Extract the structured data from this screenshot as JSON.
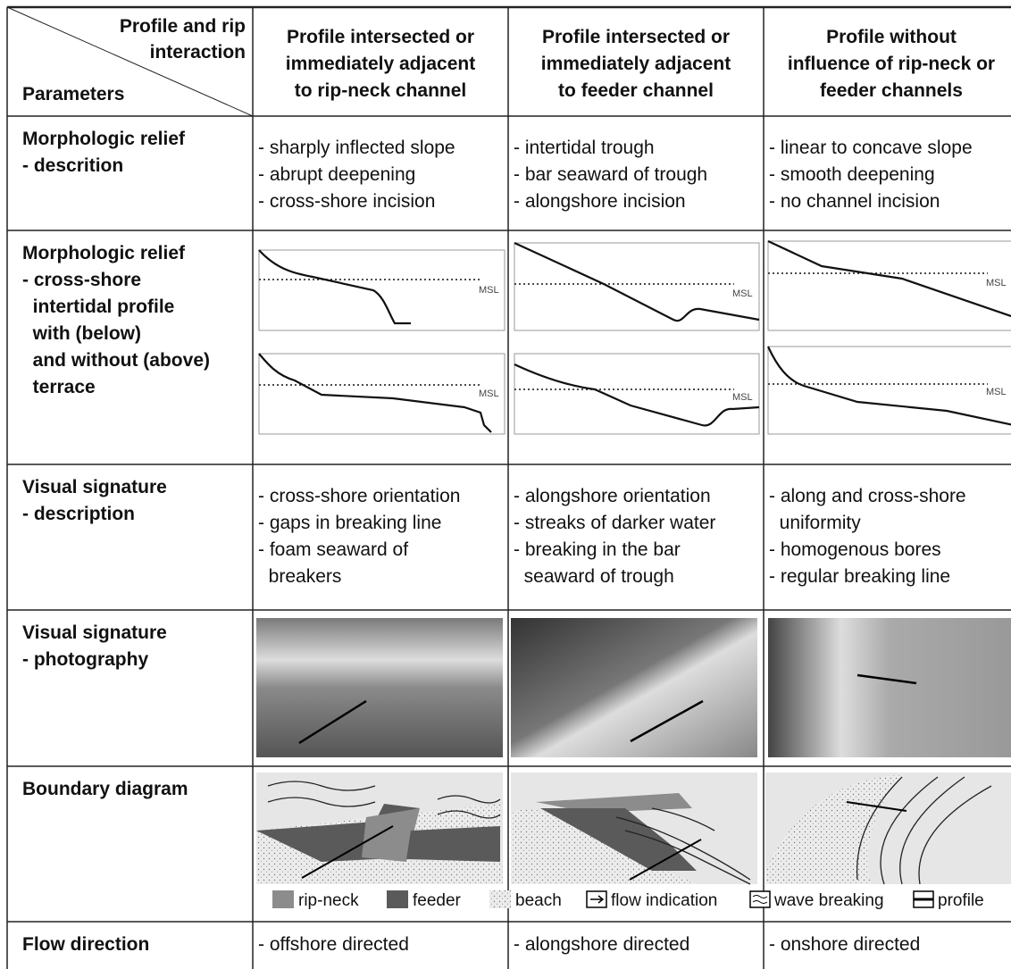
{
  "header": {
    "corner_top": [
      "Profile and rip",
      "interaction"
    ],
    "corner_bottom": "Parameters",
    "columns": [
      [
        "Profile intersected or",
        "immediately adjacent",
        "to rip-neck channel"
      ],
      [
        "Profile intersected or",
        "immediately adjacent",
        "to feeder channel"
      ],
      [
        "Profile without",
        "influence of rip-neck or",
        "feeder channels"
      ]
    ]
  },
  "rows": [
    {
      "label": [
        "Morphologic relief",
        "- descrition"
      ],
      "cells": [
        [
          "- sharply inflected slope",
          "- abrupt deepening",
          "- cross-shore incision"
        ],
        [
          "- intertidal trough",
          "- bar seaward of trough",
          "- alongshore incision"
        ],
        [
          "- linear to concave slope",
          "- smooth deepening",
          "- no channel incision"
        ]
      ]
    },
    {
      "label": [
        "Morphologic relief",
        "- cross-shore",
        "  intertidal profile",
        "  with (below)",
        "  and without (above)",
        "  terrace"
      ],
      "profile_label": "MSL"
    },
    {
      "label": [
        "Visual signature",
        "- description"
      ],
      "cells": [
        [
          "- cross-shore orientation",
          "- gaps in breaking line",
          "- foam seaward of",
          "  breakers"
        ],
        [
          "- alongshore orientation",
          "- streaks of darker water",
          "- breaking in the bar",
          "  seaward of trough"
        ],
        [
          "- along and cross-shore",
          "  uniformity",
          "- homogenous bores",
          "- regular breaking line"
        ]
      ]
    },
    {
      "label": [
        "Visual signature",
        "- photography"
      ]
    },
    {
      "label": [
        "Boundary diagram"
      ],
      "legend": [
        "rip-neck",
        "feeder",
        "beach",
        "flow indication",
        "wave breaking",
        "profile"
      ]
    },
    {
      "label": [
        "Flow direction"
      ],
      "cells": [
        [
          "- offshore directed"
        ],
        [
          "- alongshore directed"
        ],
        [
          "- onshore directed"
        ]
      ]
    }
  ]
}
